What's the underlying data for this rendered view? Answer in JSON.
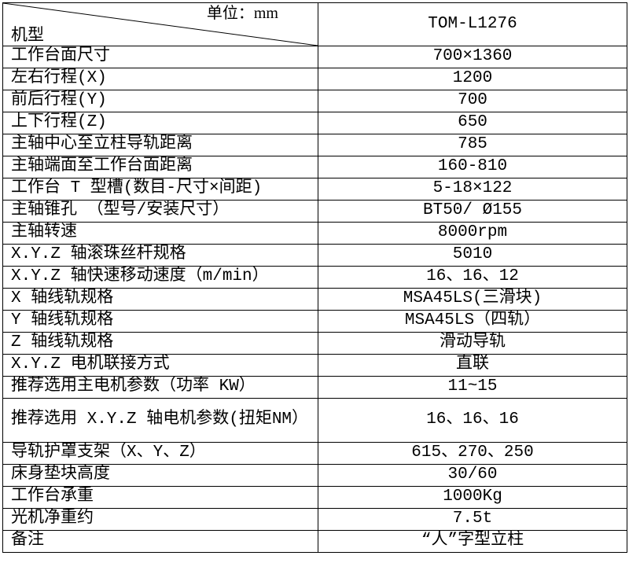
{
  "header": {
    "unit": "单位：mm",
    "model_label": "机型",
    "model": "TOM-L1276"
  },
  "rows": [
    {
      "label": "工作台面尺寸",
      "value": "700×1360"
    },
    {
      "label": "左右行程(X)",
      "value": "1200"
    },
    {
      "label": "前后行程(Y)",
      "value": "700"
    },
    {
      "label": "上下行程(Z)",
      "value": "650"
    },
    {
      "label": "主轴中心至立柱导轨距离",
      "value": "785"
    },
    {
      "label": "主轴端面至工作台面距离",
      "value": "160-810"
    },
    {
      "label": "工作台 T 型槽(数目-尺寸×间距)",
      "value": "5-18×122"
    },
    {
      "label": "主轴锥孔 （型号/安装尺寸）",
      "value": "BT50/ Ø155"
    },
    {
      "label": "主轴转速",
      "value": "8000rpm"
    },
    {
      "label": "X.Y.Z 轴滚珠丝杆规格",
      "value": "5010"
    },
    {
      "label": "X.Y.Z 轴快速移动速度（m/min）",
      "value": "16、16、12"
    },
    {
      "label": "X 轴线轨规格",
      "value": "MSA45LS(三滑块)"
    },
    {
      "label": "Y 轴线轨规格",
      "value": "MSA45LS（四轨）"
    },
    {
      "label": "Z 轴线轨规格",
      "value": "滑动导轨"
    },
    {
      "label": "X.Y.Z 电机联接方式",
      "value": "直联"
    },
    {
      "label": "推荐选用主电机参数（功率 KW）",
      "value": "11~15"
    },
    {
      "label": "推荐选用 X.Y.Z 轴电机参数(扭矩NM）",
      "value": "16、16、16"
    },
    {
      "label": "导轨护罩支架（X、Y、Z）",
      "value": "615、270、250"
    },
    {
      "label": "床身垫块高度",
      "value": "30/60"
    },
    {
      "label": "工作台承重",
      "value": "1000Kg"
    },
    {
      "label": "光机净重约",
      "value": "7.5t"
    },
    {
      "label": "备注",
      "value": "“人”字型立柱"
    }
  ]
}
